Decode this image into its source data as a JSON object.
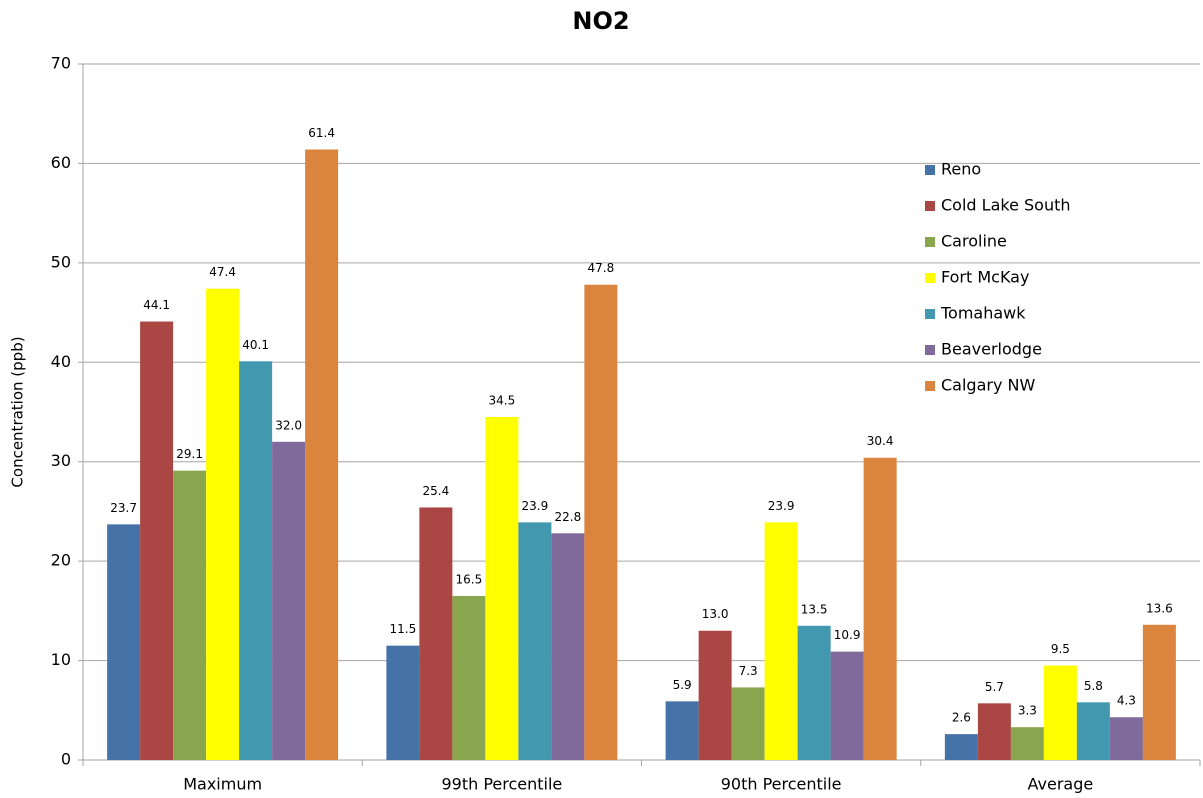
{
  "chart_data": {
    "type": "bar",
    "title": "NO2",
    "y_label": "Concentration (ppb)",
    "categories": [
      "Maximum",
      "99th Percentile",
      "90th Percentile",
      "Average"
    ],
    "series": [
      {
        "name": "Reno",
        "color": "#4572a7",
        "values": [
          23.7,
          11.5,
          5.9,
          2.6
        ],
        "value_labels": [
          "23.7",
          "11.5",
          "5.9",
          "2.6"
        ]
      },
      {
        "name": "Cold Lake South",
        "color": "#aa4643",
        "values": [
          44.1,
          25.4,
          13.0,
          5.7
        ],
        "value_labels": [
          "44.1",
          "25.4",
          "13.0",
          "5.7"
        ]
      },
      {
        "name": "Caroline",
        "color": "#89a54e",
        "values": [
          29.1,
          16.5,
          7.3,
          3.3
        ],
        "value_labels": [
          "29.1",
          "16.5",
          "7.3",
          "3.3"
        ]
      },
      {
        "name": "Fort McKay",
        "color": "#ffff00",
        "values": [
          47.4,
          34.5,
          23.9,
          9.5
        ],
        "value_labels": [
          "47.4",
          "34.5",
          "23.9",
          "9.5"
        ]
      },
      {
        "name": "Tomahawk",
        "color": "#4198af",
        "values": [
          40.1,
          23.9,
          13.5,
          5.8
        ],
        "value_labels": [
          "40.1",
          "23.9",
          "13.5",
          "5.8"
        ]
      },
      {
        "name": "Beaverlodge",
        "color": "#80699b",
        "values": [
          32.0,
          22.8,
          10.9,
          4.3
        ],
        "value_labels": [
          "32.0",
          "22.8",
          "10.9",
          "4.3"
        ]
      },
      {
        "name": "Calgary NW",
        "color": "#db843d",
        "values": [
          61.4,
          47.8,
          30.4,
          13.6
        ],
        "value_labels": [
          "61.4",
          "47.8",
          "30.4",
          "13.6"
        ]
      }
    ],
    "ylim": [
      0,
      70
    ],
    "yticks": [
      0,
      10,
      20,
      30,
      40,
      50,
      60,
      70
    ],
    "grid": true,
    "legend": "right"
  }
}
